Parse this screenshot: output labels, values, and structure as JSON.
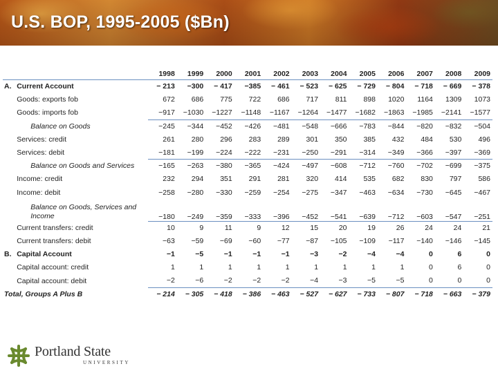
{
  "slide": {
    "title": "U.S. BOP, 1995-2005 ($Bn)"
  },
  "table": {
    "years": [
      "1998",
      "1999",
      "2000",
      "2001",
      "2002",
      "2003",
      "2004",
      "2005",
      "2006",
      "2007",
      "2008",
      "2009"
    ],
    "rows": [
      {
        "sec": "A.",
        "label": "Current Account",
        "style": "bold",
        "values": [
          "− 213",
          "−300",
          "− 417",
          "−385",
          "− 461",
          "− 523",
          "− 625",
          "− 729",
          "− 804",
          "− 718",
          "− 669",
          "− 378"
        ]
      },
      {
        "sec": "",
        "label": "Goods: exports fob",
        "style": "",
        "values": [
          "672",
          "686",
          "775",
          "722",
          "686",
          "717",
          "811",
          "898",
          "1020",
          "1164",
          "1309",
          "1073"
        ]
      },
      {
        "sec": "",
        "label": "Goods: imports fob",
        "style": "",
        "values": [
          "−917",
          "−1030",
          "−1227",
          "−1148",
          "−1167",
          "−1264",
          "−1477",
          "−1682",
          "−1863",
          "−1985",
          "−2141",
          "−1577"
        ]
      },
      {
        "sec": "",
        "label": "Balance on Goods",
        "style": "ind ruled",
        "values": [
          "−245",
          "−344",
          "−452",
          "−426",
          "−481",
          "−548",
          "−666",
          "−783",
          "−844",
          "−820",
          "−832",
          "−504"
        ]
      },
      {
        "sec": "",
        "label": "Services: credit",
        "style": "",
        "values": [
          "261",
          "280",
          "296",
          "283",
          "289",
          "301",
          "350",
          "385",
          "432",
          "484",
          "530",
          "496"
        ]
      },
      {
        "sec": "",
        "label": "Services: debit",
        "style": "",
        "values": [
          "−181",
          "−199",
          "−224",
          "−222",
          "−231",
          "−250",
          "−291",
          "−314",
          "−349",
          "−366",
          "−397",
          "−369"
        ]
      },
      {
        "sec": "",
        "label": "Balance on Goods and Services",
        "style": "ind ruled",
        "values": [
          "−165",
          "−263",
          "−380",
          "−365",
          "−424",
          "−497",
          "−608",
          "−712",
          "−760",
          "−702",
          "−699",
          "−375"
        ]
      },
      {
        "sec": "",
        "label": "Income: credit",
        "style": "",
        "values": [
          "232",
          "294",
          "351",
          "291",
          "281",
          "320",
          "414",
          "535",
          "682",
          "830",
          "797",
          "586"
        ]
      },
      {
        "sec": "",
        "label": "Income: debit",
        "style": "",
        "values": [
          "−258",
          "−280",
          "−330",
          "−259",
          "−254",
          "−275",
          "−347",
          "−463",
          "−634",
          "−730",
          "−645",
          "−467"
        ]
      },
      {
        "sec": "",
        "label": "Balance on Goods, Services and Income",
        "style": "ind multi",
        "values": [
          "−180",
          "−249",
          "−359",
          "−333",
          "−396",
          "−452",
          "−541",
          "−639",
          "−712",
          "−603",
          "−547",
          "−251"
        ]
      },
      {
        "sec": "",
        "label": "Current transfers: credit",
        "style": "ruled",
        "values": [
          "10",
          "9",
          "11",
          "9",
          "12",
          "15",
          "20",
          "19",
          "26",
          "24",
          "24",
          "21"
        ]
      },
      {
        "sec": "",
        "label": "Current transfers: debit",
        "style": "",
        "values": [
          "−63",
          "−59",
          "−69",
          "−60",
          "−77",
          "−87",
          "−105",
          "−109",
          "−117",
          "−140",
          "−146",
          "−145"
        ]
      },
      {
        "sec": "B.",
        "label": "Capital Account",
        "style": "bold",
        "values": [
          "−1",
          "−5",
          "−1",
          "−1",
          "−1",
          "−3",
          "−2",
          "−4",
          "−4",
          "0",
          "6",
          "0"
        ]
      },
      {
        "sec": "",
        "label": "Capital account: credit",
        "style": "",
        "values": [
          "1",
          "1",
          "1",
          "1",
          "1",
          "1",
          "1",
          "1",
          "1",
          "0",
          "6",
          "0"
        ]
      },
      {
        "sec": "",
        "label": "Capital account: debit",
        "style": "ruled-bot",
        "values": [
          "−2",
          "−6",
          "−2",
          "−2",
          "−2",
          "−4",
          "−3",
          "−5",
          "−5",
          "0",
          "0",
          "0"
        ]
      },
      {
        "sec": "Total, Groups A Plus B",
        "label": "",
        "style": "total",
        "values": [
          "− 214",
          "− 305",
          "− 418",
          "− 386",
          "− 463",
          "− 527",
          "− 627",
          "− 733",
          "− 807",
          "− 718",
          "− 663",
          "− 379"
        ]
      }
    ]
  },
  "logo": {
    "name": "Portland State",
    "sub": "UNIVERSITY",
    "icon": "psu-knot-logo-icon",
    "color": "#6a8a2f"
  }
}
